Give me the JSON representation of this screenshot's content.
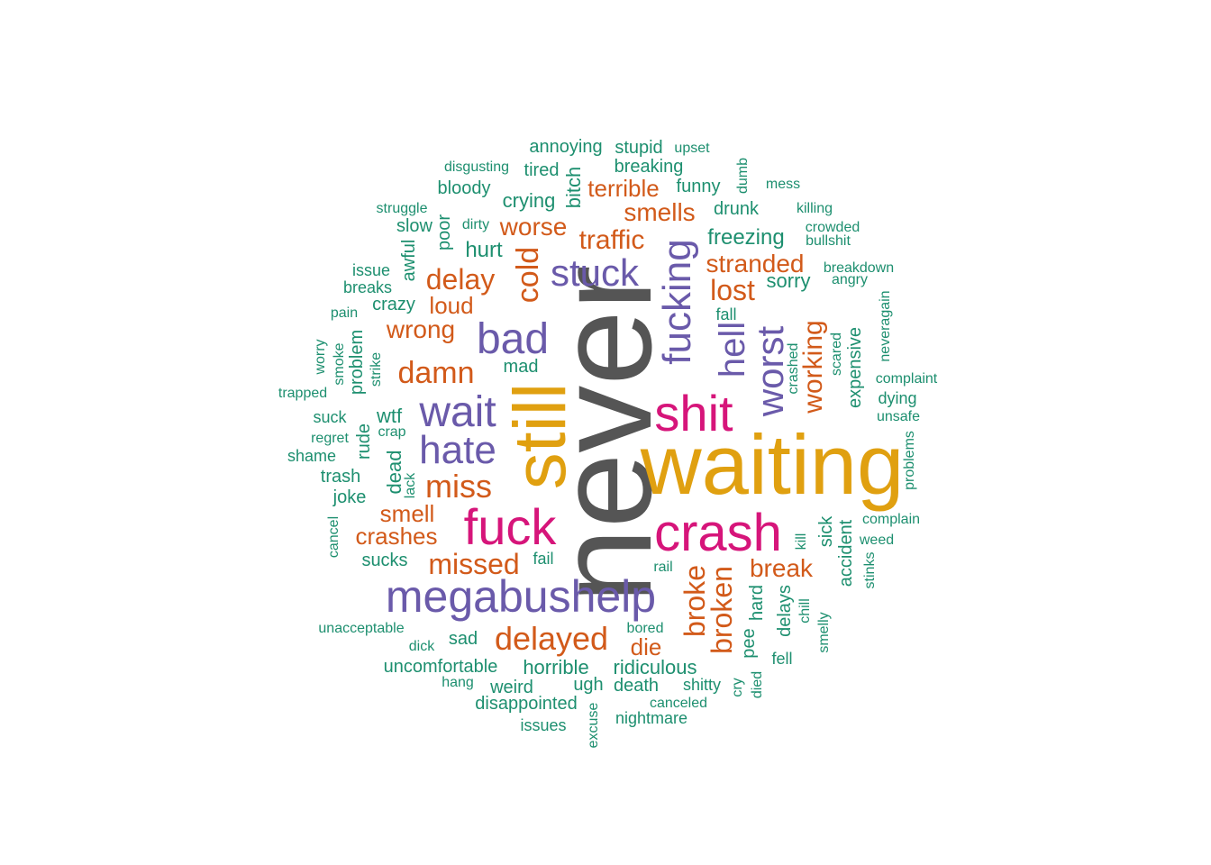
{
  "palette": {
    "dark_gray": "#555555",
    "gold": "#E0A010",
    "magenta": "#D6157A",
    "purple": "#6A5AAA",
    "orange": "#D25A1A",
    "teal": "#1D8F6F"
  },
  "words": [
    {
      "text": "never",
      "color": "dark_gray"
    },
    {
      "text": "waiting",
      "color": "gold"
    },
    {
      "text": "still",
      "color": "gold"
    },
    {
      "text": "crash",
      "color": "magenta"
    },
    {
      "text": "fuck",
      "color": "magenta"
    },
    {
      "text": "shit",
      "color": "magenta"
    },
    {
      "text": "megabushelp",
      "color": "purple"
    },
    {
      "text": "wait",
      "color": "purple"
    },
    {
      "text": "hate",
      "color": "purple"
    },
    {
      "text": "bad",
      "color": "purple"
    },
    {
      "text": "fucking",
      "color": "purple"
    },
    {
      "text": "stuck",
      "color": "purple"
    },
    {
      "text": "worst",
      "color": "purple"
    },
    {
      "text": "hell",
      "color": "purple"
    },
    {
      "text": "delayed",
      "color": "orange"
    },
    {
      "text": "miss",
      "color": "orange"
    },
    {
      "text": "missed",
      "color": "orange"
    },
    {
      "text": "damn",
      "color": "orange"
    },
    {
      "text": "delay",
      "color": "orange"
    },
    {
      "text": "cold",
      "color": "orange"
    },
    {
      "text": "traffic",
      "color": "orange"
    },
    {
      "text": "smells",
      "color": "orange"
    },
    {
      "text": "terrible",
      "color": "orange"
    },
    {
      "text": "worse",
      "color": "orange"
    },
    {
      "text": "lost",
      "color": "orange"
    },
    {
      "text": "stranded",
      "color": "orange"
    },
    {
      "text": "working",
      "color": "orange"
    },
    {
      "text": "broken",
      "color": "orange"
    },
    {
      "text": "broke",
      "color": "orange"
    },
    {
      "text": "break",
      "color": "orange"
    },
    {
      "text": "crashes",
      "color": "orange"
    },
    {
      "text": "smell",
      "color": "orange"
    },
    {
      "text": "wrong",
      "color": "orange"
    },
    {
      "text": "loud",
      "color": "orange"
    },
    {
      "text": "die",
      "color": "orange"
    },
    {
      "text": "annoying",
      "color": "teal"
    },
    {
      "text": "stupid",
      "color": "teal"
    },
    {
      "text": "upset",
      "color": "teal"
    },
    {
      "text": "disgusting",
      "color": "teal"
    },
    {
      "text": "tired",
      "color": "teal"
    },
    {
      "text": "breaking",
      "color": "teal"
    },
    {
      "text": "bloody",
      "color": "teal"
    },
    {
      "text": "crying",
      "color": "teal"
    },
    {
      "text": "bitch",
      "color": "teal"
    },
    {
      "text": "funny",
      "color": "teal"
    },
    {
      "text": "dumb",
      "color": "teal"
    },
    {
      "text": "mess",
      "color": "teal"
    },
    {
      "text": "struggle",
      "color": "teal"
    },
    {
      "text": "dirty",
      "color": "teal"
    },
    {
      "text": "drunk",
      "color": "teal"
    },
    {
      "text": "killing",
      "color": "teal"
    },
    {
      "text": "slow",
      "color": "teal"
    },
    {
      "text": "poor",
      "color": "teal"
    },
    {
      "text": "crowded",
      "color": "teal"
    },
    {
      "text": "bullshit",
      "color": "teal"
    },
    {
      "text": "hurt",
      "color": "teal"
    },
    {
      "text": "freezing",
      "color": "teal"
    },
    {
      "text": "awful",
      "color": "teal"
    },
    {
      "text": "issue",
      "color": "teal"
    },
    {
      "text": "breakdown",
      "color": "teal"
    },
    {
      "text": "breaks",
      "color": "teal"
    },
    {
      "text": "angry",
      "color": "teal"
    },
    {
      "text": "sorry",
      "color": "teal"
    },
    {
      "text": "crazy",
      "color": "teal"
    },
    {
      "text": "pain",
      "color": "teal"
    },
    {
      "text": "neveragain",
      "color": "teal"
    },
    {
      "text": "fall",
      "color": "teal"
    },
    {
      "text": "problem",
      "color": "teal"
    },
    {
      "text": "smoke",
      "color": "teal"
    },
    {
      "text": "worry",
      "color": "teal"
    },
    {
      "text": "mad",
      "color": "teal"
    },
    {
      "text": "strike",
      "color": "teal"
    },
    {
      "text": "crashed",
      "color": "teal"
    },
    {
      "text": "scared",
      "color": "teal"
    },
    {
      "text": "expensive",
      "color": "teal"
    },
    {
      "text": "complaint",
      "color": "teal"
    },
    {
      "text": "trapped",
      "color": "teal"
    },
    {
      "text": "dying",
      "color": "teal"
    },
    {
      "text": "suck",
      "color": "teal"
    },
    {
      "text": "wtf",
      "color": "teal"
    },
    {
      "text": "unsafe",
      "color": "teal"
    },
    {
      "text": "regret",
      "color": "teal"
    },
    {
      "text": "crap",
      "color": "teal"
    },
    {
      "text": "rude",
      "color": "teal"
    },
    {
      "text": "shame",
      "color": "teal"
    },
    {
      "text": "problems",
      "color": "teal"
    },
    {
      "text": "dead",
      "color": "teal"
    },
    {
      "text": "trash",
      "color": "teal"
    },
    {
      "text": "lack",
      "color": "teal"
    },
    {
      "text": "joke",
      "color": "teal"
    },
    {
      "text": "complain",
      "color": "teal"
    },
    {
      "text": "cancel",
      "color": "teal"
    },
    {
      "text": "sick",
      "color": "teal"
    },
    {
      "text": "kill",
      "color": "teal"
    },
    {
      "text": "weed",
      "color": "teal"
    },
    {
      "text": "accident",
      "color": "teal"
    },
    {
      "text": "sucks",
      "color": "teal"
    },
    {
      "text": "fail",
      "color": "teal"
    },
    {
      "text": "rail",
      "color": "teal"
    },
    {
      "text": "stinks",
      "color": "teal"
    },
    {
      "text": "hard",
      "color": "teal"
    },
    {
      "text": "delays",
      "color": "teal"
    },
    {
      "text": "chill",
      "color": "teal"
    },
    {
      "text": "unacceptable",
      "color": "teal"
    },
    {
      "text": "bored",
      "color": "teal"
    },
    {
      "text": "pee",
      "color": "teal"
    },
    {
      "text": "smelly",
      "color": "teal"
    },
    {
      "text": "dick",
      "color": "teal"
    },
    {
      "text": "sad",
      "color": "teal"
    },
    {
      "text": "fell",
      "color": "teal"
    },
    {
      "text": "uncomfortable",
      "color": "teal"
    },
    {
      "text": "horrible",
      "color": "teal"
    },
    {
      "text": "ridiculous",
      "color": "teal"
    },
    {
      "text": "hang",
      "color": "teal"
    },
    {
      "text": "weird",
      "color": "teal"
    },
    {
      "text": "ugh",
      "color": "teal"
    },
    {
      "text": "death",
      "color": "teal"
    },
    {
      "text": "shitty",
      "color": "teal"
    },
    {
      "text": "cry",
      "color": "teal"
    },
    {
      "text": "died",
      "color": "teal"
    },
    {
      "text": "disappointed",
      "color": "teal"
    },
    {
      "text": "canceled",
      "color": "teal"
    },
    {
      "text": "excuse",
      "color": "teal"
    },
    {
      "text": "nightmare",
      "color": "teal"
    },
    {
      "text": "issues",
      "color": "teal"
    }
  ]
}
